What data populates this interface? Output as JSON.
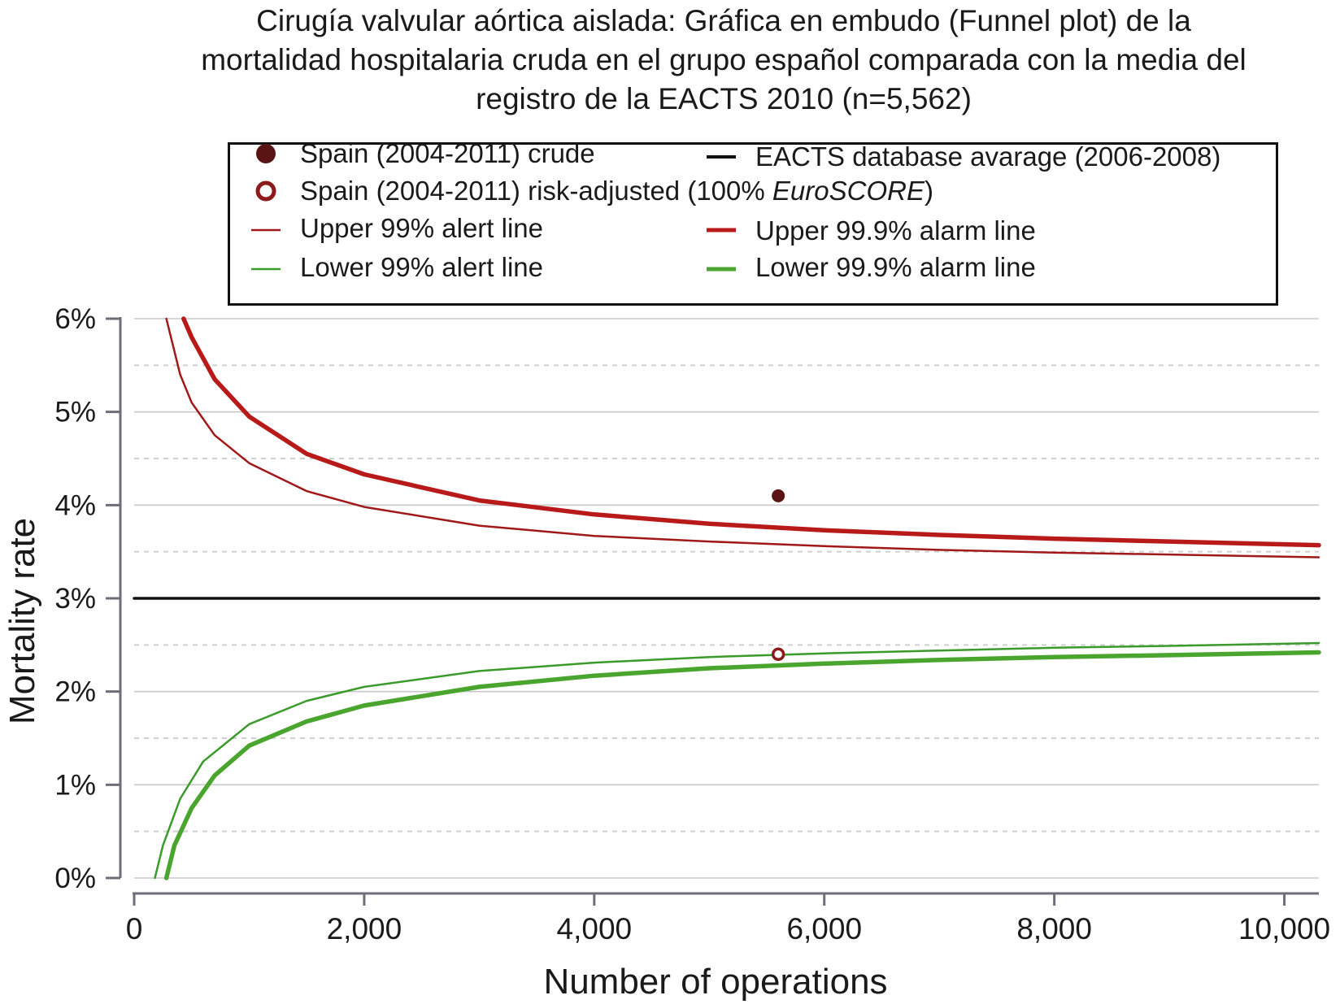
{
  "chart_data": {
    "type": "line",
    "title_lines": [
      "Cirugía valvular aórtica aislada: Gráfica en embudo (Funnel plot) de la",
      "mortalidad hospitalaria cruda en el grupo español comparada con la media del",
      "registro de la EACTS 2010 (n=5,562)"
    ],
    "xlabel": "Number of operations",
    "ylabel": "Mortality rate",
    "xlim": [
      0,
      10300
    ],
    "ylim": [
      0,
      6
    ],
    "x_ticks": [
      0,
      2000,
      4000,
      6000,
      8000,
      10000
    ],
    "x_tick_labels": [
      "0",
      "2,000",
      "4,000",
      "6,000",
      "8,000",
      "10,000"
    ],
    "y_ticks": [
      0,
      1,
      2,
      3,
      4,
      5,
      6
    ],
    "y_tick_labels": [
      "0%",
      "1%",
      "2%",
      "3%",
      "4%",
      "5%",
      "6%"
    ],
    "grid": "horizontal dashed",
    "legend_position": "top",
    "average": 3.0,
    "series": [
      {
        "name": "Spain (2004-2011) crude",
        "kind": "point",
        "color": "#5a1414",
        "x": [
          5600
        ],
        "y": [
          4.1
        ]
      },
      {
        "name": "Spain (2004-2011) risk-adjusted (100% ",
        "name_em": "EuroSCORE",
        "name_tail": ")",
        "kind": "open-point",
        "color": "#8b1a1a",
        "x": [
          5600
        ],
        "y": [
          2.4
        ]
      },
      {
        "name": "EACTS database avarage (2006-2008)",
        "kind": "line",
        "color": "#111111",
        "x": [
          0,
          10300
        ],
        "y": [
          3.0,
          3.0
        ]
      },
      {
        "name": "Upper 99% alert line",
        "kind": "line",
        "color": "#a01818",
        "x": [
          280,
          400,
          500,
          700,
          1000,
          1500,
          2000,
          3000,
          4000,
          5000,
          6000,
          7000,
          8000,
          9000,
          10300
        ],
        "y": [
          6.0,
          5.4,
          5.1,
          4.75,
          4.45,
          4.15,
          3.98,
          3.78,
          3.67,
          3.61,
          3.56,
          3.52,
          3.49,
          3.47,
          3.44
        ]
      },
      {
        "name": "Upper 99.9% alarm line",
        "kind": "line",
        "color": "#b81a1a",
        "x": [
          430,
          500,
          700,
          1000,
          1500,
          2000,
          3000,
          4000,
          5000,
          6000,
          7000,
          8000,
          9000,
          10300
        ],
        "y": [
          6.0,
          5.8,
          5.35,
          4.95,
          4.55,
          4.33,
          4.05,
          3.9,
          3.8,
          3.73,
          3.68,
          3.64,
          3.61,
          3.57
        ]
      },
      {
        "name": "Lower 99% alert line",
        "kind": "line",
        "color": "#3a9a2a",
        "x": [
          180,
          250,
          400,
          600,
          1000,
          1500,
          2000,
          3000,
          4000,
          5000,
          6000,
          7000,
          8000,
          9000,
          10300
        ],
        "y": [
          0.0,
          0.35,
          0.85,
          1.25,
          1.65,
          1.9,
          2.05,
          2.22,
          2.31,
          2.37,
          2.41,
          2.44,
          2.47,
          2.49,
          2.52
        ]
      },
      {
        "name": "Lower 99.9% alarm line",
        "kind": "line",
        "color": "#4aa52e",
        "x": [
          280,
          350,
          500,
          700,
          1000,
          1500,
          2000,
          3000,
          4000,
          5000,
          6000,
          7000,
          8000,
          9000,
          10300
        ],
        "y": [
          0.0,
          0.35,
          0.75,
          1.1,
          1.42,
          1.68,
          1.85,
          2.05,
          2.17,
          2.25,
          2.3,
          2.34,
          2.37,
          2.39,
          2.42
        ]
      }
    ]
  }
}
